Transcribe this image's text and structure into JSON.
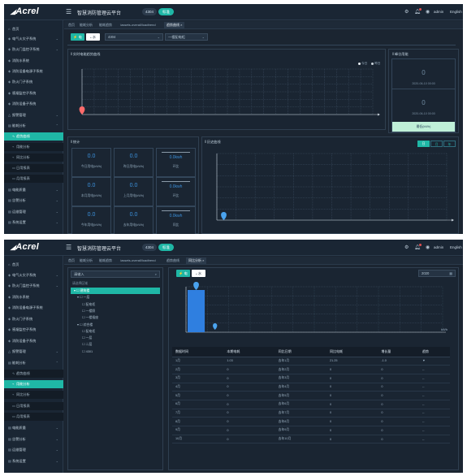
{
  "app": {
    "logo": "Acrel",
    "title": "智慧消防管理云平台",
    "code": "4304",
    "level": "标准",
    "username": "admin",
    "language": "English"
  },
  "sidebar": {
    "items": [
      {
        "icon": "⌂",
        "label": "首页",
        "arrow": ""
      },
      {
        "icon": "◈",
        "label": "电气火灾子系统",
        "arrow": "⌄"
      },
      {
        "icon": "◈",
        "label": "防火门监控子系统",
        "arrow": "⌄"
      },
      {
        "icon": "◈",
        "label": "消防水系统",
        "arrow": ""
      },
      {
        "icon": "◈",
        "label": "消防设备电源子系统",
        "arrow": ""
      },
      {
        "icon": "◈",
        "label": "防火门子系统",
        "arrow": ""
      },
      {
        "icon": "◈",
        "label": "感烟监控子系统",
        "arrow": ""
      },
      {
        "icon": "◈",
        "label": "消防设备子系统",
        "arrow": ""
      },
      {
        "icon": "△",
        "label": "报警管理",
        "arrow": "⌄"
      },
      {
        "icon": "▤",
        "label": "能耗分析",
        "arrow": "⌃"
      }
    ],
    "sub_items": [
      {
        "icon": "∿",
        "label": "趋势曲线"
      },
      {
        "icon": "⌁",
        "label": "用能分析"
      },
      {
        "icon": "⌁",
        "label": "同比分析"
      },
      {
        "icon": "▭",
        "label": "日用报表"
      },
      {
        "icon": "▭",
        "label": "月用报表"
      }
    ],
    "bottom_items": [
      {
        "icon": "▤",
        "label": "电能质量",
        "arrow": "⌄"
      },
      {
        "icon": "▤",
        "label": "告警分析",
        "arrow": "⌄"
      },
      {
        "icon": "▤",
        "label": "运维管理",
        "arrow": "⌄"
      },
      {
        "icon": "▤",
        "label": "系统设置",
        "arrow": "⌄"
      }
    ]
  },
  "screen1": {
    "tabs": [
      "首页",
      "能耗分析",
      "能耗趋势",
      "/assets-overall/loadtrend",
      "趋势曲线 ×"
    ],
    "active_tab": 4,
    "toggle": {
      "electric": "电",
      "water": "水"
    },
    "meter_select": "4304",
    "param_select": "一楼配电柜",
    "trend_title": "‖ 实时电能趋势曲线",
    "trend_legend": [
      "今日",
      "昨日"
    ],
    "stats_title": "‖ 统计",
    "stats": [
      {
        "value": "0.0",
        "label": "今日用电(kWh)",
        "type": "value"
      },
      {
        "value": "0.0",
        "label": "昨日用电(kWh)",
        "type": "value"
      },
      {
        "value": "0.0kwh",
        "label": "环比",
        "type": "ratio"
      },
      {
        "value": "0.0",
        "label": "本月用电(kWh)",
        "type": "value"
      },
      {
        "value": "0.0",
        "label": "上月用电(kWh)",
        "type": "value"
      },
      {
        "value": "0.0kwh",
        "label": "环比",
        "type": "ratio"
      },
      {
        "value": "0.0",
        "label": "今年用电(kWh)",
        "type": "value"
      },
      {
        "value": "0.0",
        "label": "去年用电(kWh)",
        "type": "value"
      },
      {
        "value": "0.0kwh",
        "label": "同比",
        "type": "ratio"
      }
    ],
    "side_title": "‖ 峰谷用能",
    "side_boxes": [
      {
        "value": "0",
        "info": "2020-06-10 00:00",
        "bar": "最高(kWh)",
        "bar_color": "#bfe0f5"
      },
      {
        "value": "0",
        "info": "2020-06-10 00:00",
        "bar": "最低(kWh)",
        "bar_color": "#bff0d8"
      }
    ],
    "history_title": "‖ 历史曲线",
    "periods": [
      "日",
      "月",
      "年"
    ],
    "active_period": 0
  },
  "screen2": {
    "tabs": [
      "首页",
      "能耗分析",
      "能耗趋势",
      "/assets-overall/loadtrend",
      "趋势曲线",
      "同比分析 ×"
    ],
    "active_tab": 5,
    "toggle": {
      "electric": "电",
      "water": "水"
    },
    "tree_search_placeholder": "请输入",
    "tree_filter": "请选择区域",
    "tree": [
      {
        "label": "▾ ☐ 建筑楼",
        "indent": 0,
        "sel": true
      },
      {
        "label": "▾ ☐ 一层",
        "indent": 1,
        "sel": false
      },
      {
        "label": "☐ 配电柜",
        "indent": 2,
        "sel": false
      },
      {
        "label": "☐ 一楼照",
        "indent": 2,
        "sel": false
      },
      {
        "label": "☐ 一楼插座",
        "indent": 2,
        "sel": false
      },
      {
        "label": "▾ ☐ 综合楼",
        "indent": 1,
        "sel": false
      },
      {
        "label": "☐ 配电柜",
        "indent": 2,
        "sel": false
      },
      {
        "label": "☐ 一层",
        "indent": 2,
        "sel": false
      },
      {
        "label": "☐ 二层",
        "indent": 2,
        "sel": false
      },
      {
        "label": "☐ 4301",
        "indent": 2,
        "sel": false
      }
    ],
    "year_select": "2020",
    "bar_chart_axis_label": "kWh",
    "table": {
      "headers": [
        "数据时间",
        "本期电耗",
        "同比日期",
        "同比电耗",
        "增长量",
        "趋势"
      ],
      "rows": [
        [
          "1月",
          "1.03",
          "去年1月",
          "21.25",
          "-1.0",
          "▼"
        ],
        [
          "2月",
          "0",
          "去年2月",
          "0",
          "0",
          "--"
        ],
        [
          "3月",
          "0",
          "去年3月",
          "0",
          "0",
          "--"
        ],
        [
          "4月",
          "0",
          "去年4月",
          "0",
          "0",
          "--"
        ],
        [
          "5月",
          "0",
          "去年5月",
          "0",
          "0",
          "--"
        ],
        [
          "6月",
          "0",
          "去年6月",
          "0",
          "0",
          "--"
        ],
        [
          "7月",
          "0",
          "去年7月",
          "0",
          "0",
          "--"
        ],
        [
          "8月",
          "0",
          "去年8月",
          "0",
          "0",
          "--"
        ],
        [
          "9月",
          "0",
          "去年9月",
          "0",
          "0",
          "--"
        ],
        [
          "10月",
          "0",
          "去年10月",
          "0",
          "0",
          "--"
        ]
      ]
    }
  },
  "colors": {
    "accent": "#1fb7a6",
    "marker_red": "#ff6b6b",
    "marker_blue": "#4aa3ee",
    "bar_blue": "#2f7fe0"
  }
}
